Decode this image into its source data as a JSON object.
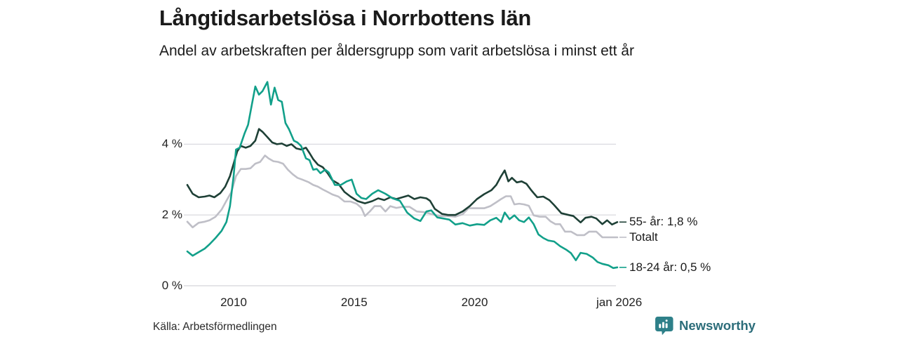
{
  "header": {
    "title": "Långtidsarbetslösa i Norrbottens län",
    "subtitle": "Andel av arbetskraften per åldersgrupp som varit arbetslösa i minst ett år"
  },
  "footer": {
    "source": "Källa: Arbetsförmedlingen",
    "brand_name": "Newsworthy",
    "brand_icon": "bar-chart-bubble-icon",
    "brand_color": "#2e8089",
    "brand_text_color": "#2c6d7a"
  },
  "chart_data": {
    "type": "line",
    "title": "Långtidsarbetslösa i Norrbottens län",
    "subtitle": "Andel av arbetskraften per åldersgrupp som varit arbetslösa i minst ett år",
    "xlabel": "",
    "ylabel": "",
    "grid": true,
    "grid_color": "#dcdce1",
    "legend_position": "right-end-labels",
    "xlim": [
      2008.0,
      2026.2
    ],
    "ylim": [
      0,
      6.2
    ],
    "x_ticks": [
      {
        "label": "2010",
        "year": 2010
      },
      {
        "label": "2015",
        "year": 2015
      },
      {
        "label": "2020",
        "year": 2020
      },
      {
        "label": "jan 2026",
        "year": 2026.0
      }
    ],
    "y_ticks": [
      {
        "label": "4 %",
        "value": 4
      },
      {
        "label": "2 %",
        "value": 2
      },
      {
        "label": "0 %",
        "value": 0
      }
    ],
    "series": [
      {
        "name": "Totalt",
        "end_label": "Totalt",
        "color": "#bfbfc7",
        "points": [
          [
            2008.08,
            1.81
          ],
          [
            2008.3,
            1.65
          ],
          [
            2008.55,
            1.78
          ],
          [
            2008.8,
            1.81
          ],
          [
            2009.0,
            1.85
          ],
          [
            2009.25,
            1.95
          ],
          [
            2009.5,
            2.15
          ],
          [
            2009.7,
            2.4
          ],
          [
            2009.9,
            2.64
          ],
          [
            2010.1,
            3.1
          ],
          [
            2010.3,
            3.3
          ],
          [
            2010.5,
            3.3
          ],
          [
            2010.7,
            3.32
          ],
          [
            2010.9,
            3.45
          ],
          [
            2011.1,
            3.5
          ],
          [
            2011.3,
            3.68
          ],
          [
            2011.45,
            3.6
          ],
          [
            2011.65,
            3.52
          ],
          [
            2011.85,
            3.5
          ],
          [
            2012.05,
            3.45
          ],
          [
            2012.25,
            3.28
          ],
          [
            2012.45,
            3.15
          ],
          [
            2012.65,
            3.05
          ],
          [
            2012.85,
            3.0
          ],
          [
            2013.1,
            2.93
          ],
          [
            2013.3,
            2.85
          ],
          [
            2013.5,
            2.8
          ],
          [
            2013.7,
            2.72
          ],
          [
            2013.9,
            2.65
          ],
          [
            2014.1,
            2.58
          ],
          [
            2014.35,
            2.52
          ],
          [
            2014.6,
            2.38
          ],
          [
            2014.85,
            2.38
          ],
          [
            2015.1,
            2.32
          ],
          [
            2015.3,
            2.2
          ],
          [
            2015.45,
            1.97
          ],
          [
            2015.65,
            2.1
          ],
          [
            2015.85,
            2.25
          ],
          [
            2016.1,
            2.25
          ],
          [
            2016.3,
            2.1
          ],
          [
            2016.5,
            2.25
          ],
          [
            2016.75,
            2.2
          ],
          [
            2017.0,
            2.23
          ],
          [
            2017.3,
            2.23
          ],
          [
            2017.6,
            2.1
          ],
          [
            2017.9,
            2.08
          ],
          [
            2018.1,
            2.05
          ],
          [
            2018.35,
            2.0
          ],
          [
            2018.6,
            1.97
          ],
          [
            2018.9,
            1.97
          ],
          [
            2019.2,
            1.95
          ],
          [
            2019.5,
            2.02
          ],
          [
            2019.75,
            2.19
          ],
          [
            2020.1,
            2.19
          ],
          [
            2020.4,
            2.19
          ],
          [
            2020.65,
            2.25
          ],
          [
            2020.9,
            2.36
          ],
          [
            2021.1,
            2.45
          ],
          [
            2021.3,
            2.53
          ],
          [
            2021.5,
            2.53
          ],
          [
            2021.65,
            2.3
          ],
          [
            2021.85,
            2.32
          ],
          [
            2022.05,
            2.3
          ],
          [
            2022.25,
            2.26
          ],
          [
            2022.45,
            1.99
          ],
          [
            2022.7,
            1.95
          ],
          [
            2022.95,
            1.95
          ],
          [
            2023.15,
            1.82
          ],
          [
            2023.35,
            1.74
          ],
          [
            2023.55,
            1.74
          ],
          [
            2023.75,
            1.53
          ],
          [
            2024.0,
            1.53
          ],
          [
            2024.25,
            1.43
          ],
          [
            2024.55,
            1.43
          ],
          [
            2024.75,
            1.53
          ],
          [
            2025.05,
            1.53
          ],
          [
            2025.3,
            1.37
          ],
          [
            2025.6,
            1.37
          ],
          [
            2025.92,
            1.37
          ]
        ]
      },
      {
        "name": "55- år",
        "end_label": "55- år: 1,8 %",
        "color": "#1e4036",
        "points": [
          [
            2008.08,
            2.85
          ],
          [
            2008.3,
            2.6
          ],
          [
            2008.55,
            2.5
          ],
          [
            2008.8,
            2.52
          ],
          [
            2009.0,
            2.55
          ],
          [
            2009.2,
            2.5
          ],
          [
            2009.45,
            2.62
          ],
          [
            2009.65,
            2.8
          ],
          [
            2009.85,
            3.1
          ],
          [
            2010.0,
            3.45
          ],
          [
            2010.15,
            3.8
          ],
          [
            2010.3,
            3.95
          ],
          [
            2010.5,
            3.9
          ],
          [
            2010.7,
            3.95
          ],
          [
            2010.9,
            4.1
          ],
          [
            2011.05,
            4.43
          ],
          [
            2011.2,
            4.35
          ],
          [
            2011.4,
            4.2
          ],
          [
            2011.6,
            4.05
          ],
          [
            2011.8,
            4.0
          ],
          [
            2012.0,
            4.02
          ],
          [
            2012.2,
            3.95
          ],
          [
            2012.4,
            4.0
          ],
          [
            2012.6,
            3.88
          ],
          [
            2012.8,
            3.85
          ],
          [
            2013.0,
            3.9
          ],
          [
            2013.15,
            3.75
          ],
          [
            2013.3,
            3.58
          ],
          [
            2013.5,
            3.42
          ],
          [
            2013.7,
            3.35
          ],
          [
            2013.9,
            3.18
          ],
          [
            2014.1,
            2.98
          ],
          [
            2014.35,
            2.88
          ],
          [
            2014.6,
            2.65
          ],
          [
            2014.85,
            2.52
          ],
          [
            2015.15,
            2.39
          ],
          [
            2015.45,
            2.33
          ],
          [
            2015.75,
            2.39
          ],
          [
            2016.0,
            2.47
          ],
          [
            2016.25,
            2.42
          ],
          [
            2016.5,
            2.5
          ],
          [
            2016.75,
            2.45
          ],
          [
            2017.0,
            2.5
          ],
          [
            2017.25,
            2.55
          ],
          [
            2017.5,
            2.45
          ],
          [
            2017.75,
            2.5
          ],
          [
            2018.0,
            2.47
          ],
          [
            2018.15,
            2.4
          ],
          [
            2018.35,
            2.17
          ],
          [
            2018.65,
            2.03
          ],
          [
            2018.9,
            2.0
          ],
          [
            2019.2,
            2.0
          ],
          [
            2019.5,
            2.1
          ],
          [
            2019.8,
            2.25
          ],
          [
            2020.1,
            2.45
          ],
          [
            2020.4,
            2.59
          ],
          [
            2020.7,
            2.7
          ],
          [
            2020.9,
            2.85
          ],
          [
            2021.1,
            3.1
          ],
          [
            2021.25,
            3.26
          ],
          [
            2021.4,
            2.95
          ],
          [
            2021.55,
            3.05
          ],
          [
            2021.75,
            2.92
          ],
          [
            2021.95,
            2.95
          ],
          [
            2022.15,
            2.88
          ],
          [
            2022.35,
            2.7
          ],
          [
            2022.6,
            2.5
          ],
          [
            2022.85,
            2.52
          ],
          [
            2023.1,
            2.42
          ],
          [
            2023.3,
            2.28
          ],
          [
            2023.6,
            2.05
          ],
          [
            2023.9,
            2.0
          ],
          [
            2024.1,
            1.97
          ],
          [
            2024.4,
            1.79
          ],
          [
            2024.6,
            1.92
          ],
          [
            2024.85,
            1.95
          ],
          [
            2025.05,
            1.9
          ],
          [
            2025.3,
            1.74
          ],
          [
            2025.5,
            1.85
          ],
          [
            2025.7,
            1.73
          ],
          [
            2025.92,
            1.8
          ]
        ]
      },
      {
        "name": "18-24 år",
        "end_label": "18-24 år: 0,5 %",
        "color": "#12a08a",
        "points": [
          [
            2008.08,
            0.97
          ],
          [
            2008.3,
            0.85
          ],
          [
            2008.55,
            0.95
          ],
          [
            2008.8,
            1.05
          ],
          [
            2009.0,
            1.17
          ],
          [
            2009.25,
            1.35
          ],
          [
            2009.5,
            1.55
          ],
          [
            2009.7,
            1.8
          ],
          [
            2009.85,
            2.25
          ],
          [
            2010.0,
            3.1
          ],
          [
            2010.1,
            3.85
          ],
          [
            2010.25,
            3.9
          ],
          [
            2010.45,
            4.3
          ],
          [
            2010.6,
            4.55
          ],
          [
            2010.75,
            5.1
          ],
          [
            2010.9,
            5.63
          ],
          [
            2011.05,
            5.4
          ],
          [
            2011.2,
            5.5
          ],
          [
            2011.4,
            5.76
          ],
          [
            2011.55,
            5.12
          ],
          [
            2011.7,
            5.6
          ],
          [
            2011.85,
            5.25
          ],
          [
            2012.0,
            5.2
          ],
          [
            2012.15,
            4.6
          ],
          [
            2012.3,
            4.42
          ],
          [
            2012.5,
            4.1
          ],
          [
            2012.65,
            4.05
          ],
          [
            2012.8,
            3.95
          ],
          [
            2013.0,
            3.6
          ],
          [
            2013.15,
            3.55
          ],
          [
            2013.3,
            3.28
          ],
          [
            2013.45,
            3.3
          ],
          [
            2013.6,
            3.18
          ],
          [
            2013.8,
            3.28
          ],
          [
            2013.95,
            3.2
          ],
          [
            2014.2,
            2.85
          ],
          [
            2014.45,
            2.85
          ],
          [
            2014.7,
            2.95
          ],
          [
            2014.9,
            3.0
          ],
          [
            2015.1,
            2.6
          ],
          [
            2015.3,
            2.48
          ],
          [
            2015.5,
            2.45
          ],
          [
            2015.75,
            2.6
          ],
          [
            2016.0,
            2.7
          ],
          [
            2016.3,
            2.6
          ],
          [
            2016.6,
            2.47
          ],
          [
            2016.9,
            2.4
          ],
          [
            2017.2,
            2.07
          ],
          [
            2017.5,
            1.9
          ],
          [
            2017.75,
            1.83
          ],
          [
            2018.0,
            2.1
          ],
          [
            2018.2,
            2.13
          ],
          [
            2018.45,
            1.93
          ],
          [
            2018.7,
            1.9
          ],
          [
            2018.95,
            1.87
          ],
          [
            2019.2,
            1.73
          ],
          [
            2019.5,
            1.77
          ],
          [
            2019.8,
            1.7
          ],
          [
            2020.1,
            1.74
          ],
          [
            2020.4,
            1.72
          ],
          [
            2020.65,
            1.85
          ],
          [
            2020.9,
            1.92
          ],
          [
            2021.1,
            1.8
          ],
          [
            2021.25,
            2.07
          ],
          [
            2021.45,
            1.88
          ],
          [
            2021.65,
            1.99
          ],
          [
            2021.85,
            1.85
          ],
          [
            2022.05,
            1.8
          ],
          [
            2022.25,
            1.93
          ],
          [
            2022.45,
            1.74
          ],
          [
            2022.65,
            1.45
          ],
          [
            2022.85,
            1.35
          ],
          [
            2023.05,
            1.28
          ],
          [
            2023.3,
            1.25
          ],
          [
            2023.55,
            1.12
          ],
          [
            2023.8,
            1.02
          ],
          [
            2024.0,
            0.92
          ],
          [
            2024.2,
            0.72
          ],
          [
            2024.4,
            0.93
          ],
          [
            2024.65,
            0.9
          ],
          [
            2024.9,
            0.8
          ],
          [
            2025.1,
            0.67
          ],
          [
            2025.3,
            0.62
          ],
          [
            2025.55,
            0.58
          ],
          [
            2025.75,
            0.5
          ],
          [
            2025.92,
            0.52
          ]
        ]
      }
    ]
  }
}
